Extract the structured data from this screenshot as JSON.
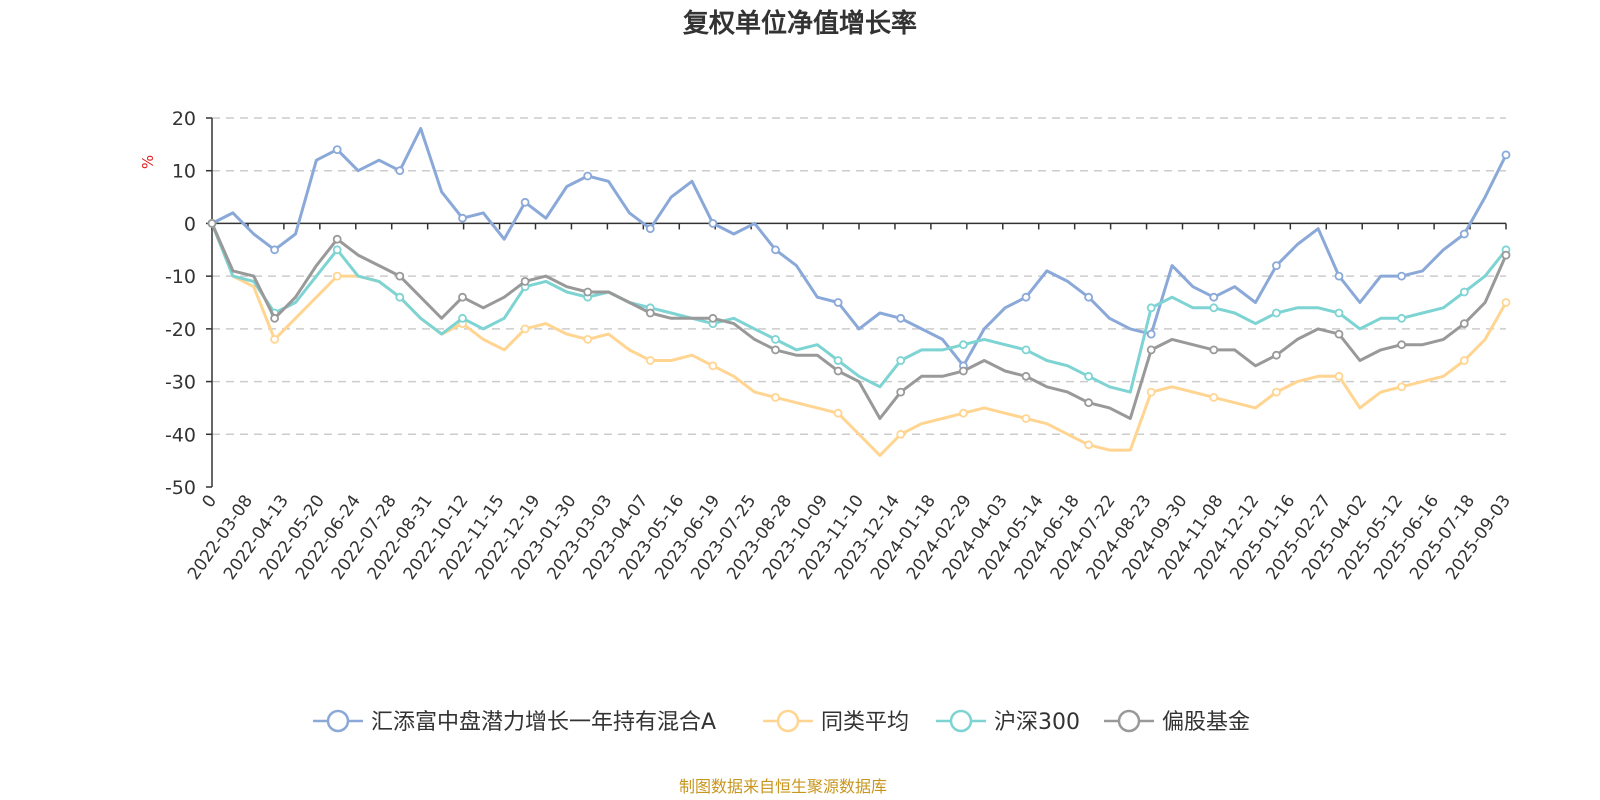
{
  "chart_data": {
    "type": "line",
    "title": "复权单位净值增长率",
    "ylabel": "%",
    "ylim": [
      -50,
      20
    ],
    "y_ticks": [
      20,
      10,
      0,
      -10,
      -20,
      -30,
      -40,
      -50
    ],
    "grid": true,
    "legend_position": "bottom",
    "x_tick_labels": [
      "0",
      "2022-03-08",
      "2022-04-13",
      "2022-05-20",
      "2022-06-24",
      "2022-07-28",
      "2022-08-31",
      "2022-10-12",
      "2022-11-15",
      "2022-12-19",
      "2023-01-30",
      "2023-03-03",
      "2023-04-07",
      "2023-05-16",
      "2023-06-19",
      "2023-07-25",
      "2023-08-28",
      "2023-10-09",
      "2023-11-10",
      "2023-12-14",
      "2024-01-18",
      "2024-02-29",
      "2024-04-03",
      "2024-05-14",
      "2024-06-18",
      "2024-07-22",
      "2024-08-23",
      "2024-09-30",
      "2024-11-08",
      "2024-12-12",
      "2025-01-16",
      "2025-02-27",
      "2025-04-02",
      "2025-05-12",
      "2025-06-16",
      "2025-07-18",
      "2025-09-03"
    ],
    "series": [
      {
        "name": "汇添富中盘潜力增长一年持有混合A",
        "color": "#8aa8d8",
        "values": [
          0,
          2,
          -2,
          -5,
          -2,
          12,
          14,
          10,
          12,
          10,
          18,
          6,
          1,
          2,
          -3,
          4,
          1,
          7,
          9,
          8,
          2,
          -1,
          5,
          8,
          0,
          -2,
          0,
          -5,
          -8,
          -14,
          -15,
          -20,
          -17,
          -18,
          -20,
          -22,
          -27,
          -20,
          -16,
          -14,
          -9,
          -11,
          -14,
          -18,
          -20,
          -21,
          -8,
          -12,
          -14,
          -12,
          -15,
          -8,
          -4,
          -1,
          -10,
          -15,
          -10,
          -10,
          -9,
          -5,
          -2,
          5,
          13
        ]
      },
      {
        "name": "同类平均",
        "color": "#ffd591",
        "values": [
          0,
          -10,
          -12,
          -22,
          -18,
          -14,
          -10,
          -10,
          -11,
          -14,
          -18,
          -21,
          -19,
          -22,
          -24,
          -20,
          -19,
          -21,
          -22,
          -21,
          -24,
          -26,
          -26,
          -25,
          -27,
          -29,
          -32,
          -33,
          -34,
          -35,
          -36,
          -40,
          -44,
          -40,
          -38,
          -37,
          -36,
          -35,
          -36,
          -37,
          -38,
          -40,
          -42,
          -43,
          -43,
          -32,
          -31,
          -32,
          -33,
          -34,
          -35,
          -32,
          -30,
          -29,
          -29,
          -35,
          -32,
          -31,
          -30,
          -29,
          -26,
          -22,
          -15
        ]
      },
      {
        "name": "沪深300",
        "color": "#7ed3d3",
        "values": [
          0,
          -10,
          -11,
          -17,
          -15,
          -10,
          -5,
          -10,
          -11,
          -14,
          -18,
          -21,
          -18,
          -20,
          -18,
          -12,
          -11,
          -13,
          -14,
          -13,
          -15,
          -16,
          -17,
          -18,
          -19,
          -18,
          -20,
          -22,
          -24,
          -23,
          -26,
          -29,
          -31,
          -26,
          -24,
          -24,
          -23,
          -22,
          -23,
          -24,
          -26,
          -27,
          -29,
          -31,
          -32,
          -16,
          -14,
          -16,
          -16,
          -17,
          -19,
          -17,
          -16,
          -16,
          -17,
          -20,
          -18,
          -18,
          -17,
          -16,
          -13,
          -10,
          -5
        ]
      },
      {
        "name": "偏股基金",
        "color": "#999999",
        "values": [
          0,
          -9,
          -10,
          -18,
          -14,
          -8,
          -3,
          -6,
          -8,
          -10,
          -14,
          -18,
          -14,
          -16,
          -14,
          -11,
          -10,
          -12,
          -13,
          -13,
          -15,
          -17,
          -18,
          -18,
          -18,
          -19,
          -22,
          -24,
          -25,
          -25,
          -28,
          -30,
          -37,
          -32,
          -29,
          -29,
          -28,
          -26,
          -28,
          -29,
          -31,
          -32,
          -34,
          -35,
          -37,
          -24,
          -22,
          -23,
          -24,
          -24,
          -27,
          -25,
          -22,
          -20,
          -21,
          -26,
          -24,
          -23,
          -23,
          -22,
          -19,
          -15,
          -6
        ]
      }
    ]
  },
  "footer": {
    "source": "制图数据来自恒生聚源数据库"
  }
}
